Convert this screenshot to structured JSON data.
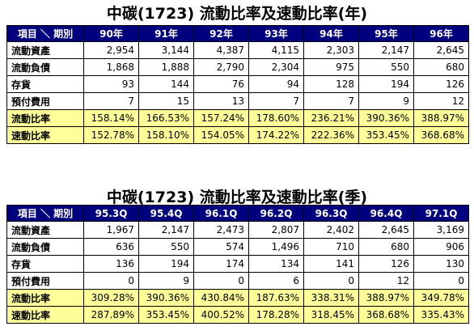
{
  "tables": [
    {
      "title": "中碳(1723)  流動比率及速動比率(年)",
      "header": [
        "項目 ＼ 期別",
        "90年",
        "91年",
        "92年",
        "93年",
        "94年",
        "95年",
        "96年"
      ],
      "rows": [
        [
          "流動資產",
          "2,954",
          "3,144",
          "4,387",
          "4,115",
          "2,303",
          "2,147",
          "2,645"
        ],
        [
          "流動負債",
          "1,868",
          "1,888",
          "2,790",
          "2,304",
          "975",
          "550",
          "680"
        ],
        [
          "存貨",
          "93",
          "144",
          "76",
          "94",
          "128",
          "194",
          "126"
        ],
        [
          "預付費用",
          "7",
          "15",
          "13",
          "7",
          "7",
          "9",
          "12"
        ],
        [
          "流動比率",
          "158.14%",
          "166.53%",
          "157.24%",
          "178.60%",
          "236.21%",
          "390.36%",
          "388.97%"
        ],
        [
          "速動比率",
          "152.78%",
          "158.10%",
          "154.05%",
          "174.22%",
          "222.36%",
          "353.45%",
          "368.68%"
        ]
      ]
    },
    {
      "title": "中碳(1723)  流動比率及速動比率(季)",
      "header": [
        "項目 ＼ 期別",
        "95.3Q",
        "95.4Q",
        "96.1Q",
        "96.2Q",
        "96.3Q",
        "96.4Q",
        "97.1Q"
      ],
      "rows": [
        [
          "流動資產",
          "1,967",
          "2,147",
          "2,473",
          "2,807",
          "2,402",
          "2,645",
          "3,169"
        ],
        [
          "流動負債",
          "636",
          "550",
          "574",
          "1,496",
          "710",
          "680",
          "906"
        ],
        [
          "存貨",
          "136",
          "194",
          "174",
          "134",
          "141",
          "126",
          "130"
        ],
        [
          "預付費用",
          "0",
          "9",
          "0",
          "6",
          "0",
          "12",
          "0"
        ],
        [
          "流動比率",
          "309.28%",
          "390.36%",
          "430.84%",
          "187.63%",
          "338.31%",
          "388.97%",
          "349.78%"
        ],
        [
          "速動比率",
          "287.89%",
          "353.45%",
          "400.52%",
          "178.28%",
          "318.45%",
          "368.68%",
          "335.43%"
        ]
      ]
    }
  ]
}
